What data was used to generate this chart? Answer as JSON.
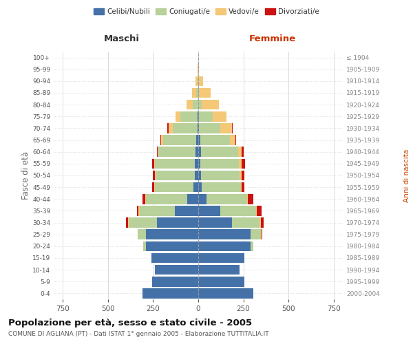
{
  "age_groups": [
    "0-4",
    "5-9",
    "10-14",
    "15-19",
    "20-24",
    "25-29",
    "30-34",
    "35-39",
    "40-44",
    "45-49",
    "50-54",
    "55-59",
    "60-64",
    "65-69",
    "70-74",
    "75-79",
    "80-84",
    "85-89",
    "90-94",
    "95-99",
    "100+"
  ],
  "birth_years": [
    "2000-2004",
    "1995-1999",
    "1990-1994",
    "1985-1989",
    "1980-1984",
    "1975-1979",
    "1970-1974",
    "1965-1969",
    "1960-1964",
    "1955-1959",
    "1950-1954",
    "1945-1949",
    "1940-1944",
    "1935-1939",
    "1930-1934",
    "1925-1929",
    "1920-1924",
    "1915-1919",
    "1910-1914",
    "1905-1909",
    "≤ 1904"
  ],
  "male": {
    "celibi": [
      310,
      255,
      240,
      260,
      290,
      290,
      230,
      130,
      60,
      25,
      20,
      20,
      15,
      10,
      5,
      5,
      0,
      0,
      0,
      0,
      0
    ],
    "coniugati": [
      0,
      0,
      0,
      0,
      15,
      45,
      155,
      195,
      230,
      215,
      215,
      220,
      205,
      185,
      135,
      95,
      30,
      10,
      5,
      0,
      0
    ],
    "vedovi": [
      0,
      0,
      0,
      0,
      0,
      0,
      5,
      5,
      5,
      5,
      5,
      5,
      5,
      10,
      25,
      25,
      35,
      25,
      10,
      5,
      0
    ],
    "divorziati": [
      0,
      0,
      0,
      0,
      0,
      0,
      10,
      10,
      15,
      10,
      10,
      10,
      5,
      5,
      5,
      0,
      0,
      0,
      0,
      0,
      0
    ]
  },
  "female": {
    "nubili": [
      305,
      255,
      230,
      255,
      290,
      290,
      185,
      120,
      45,
      20,
      15,
      10,
      15,
      10,
      5,
      5,
      0,
      0,
      0,
      0,
      0
    ],
    "coniugate": [
      0,
      0,
      0,
      0,
      15,
      55,
      155,
      200,
      225,
      215,
      215,
      215,
      205,
      165,
      115,
      75,
      20,
      5,
      5,
      0,
      0
    ],
    "vedove": [
      0,
      0,
      0,
      0,
      0,
      5,
      5,
      5,
      5,
      5,
      10,
      15,
      20,
      30,
      65,
      75,
      95,
      65,
      20,
      5,
      0
    ],
    "divorziate": [
      0,
      0,
      0,
      0,
      0,
      5,
      15,
      25,
      30,
      15,
      15,
      20,
      10,
      5,
      5,
      0,
      0,
      0,
      0,
      0,
      0
    ]
  },
  "colors": {
    "celibi": "#4472a8",
    "coniugati": "#b8d09a",
    "vedovi": "#f5c878",
    "divorziati": "#cc1111"
  },
  "xlim": 800,
  "title": "Popolazione per età, sesso e stato civile - 2005",
  "subtitle": "COMUNE DI AGLIANA (PT) - Dati ISTAT 1° gennaio 2005 - Elaborazione TUTTITALIA.IT",
  "ylabel_left": "Fasce di età",
  "ylabel_right": "Anni di nascita",
  "xlabel_left": "Maschi",
  "xlabel_right": "Femmine",
  "background_color": "#ffffff",
  "grid_color": "#cccccc"
}
